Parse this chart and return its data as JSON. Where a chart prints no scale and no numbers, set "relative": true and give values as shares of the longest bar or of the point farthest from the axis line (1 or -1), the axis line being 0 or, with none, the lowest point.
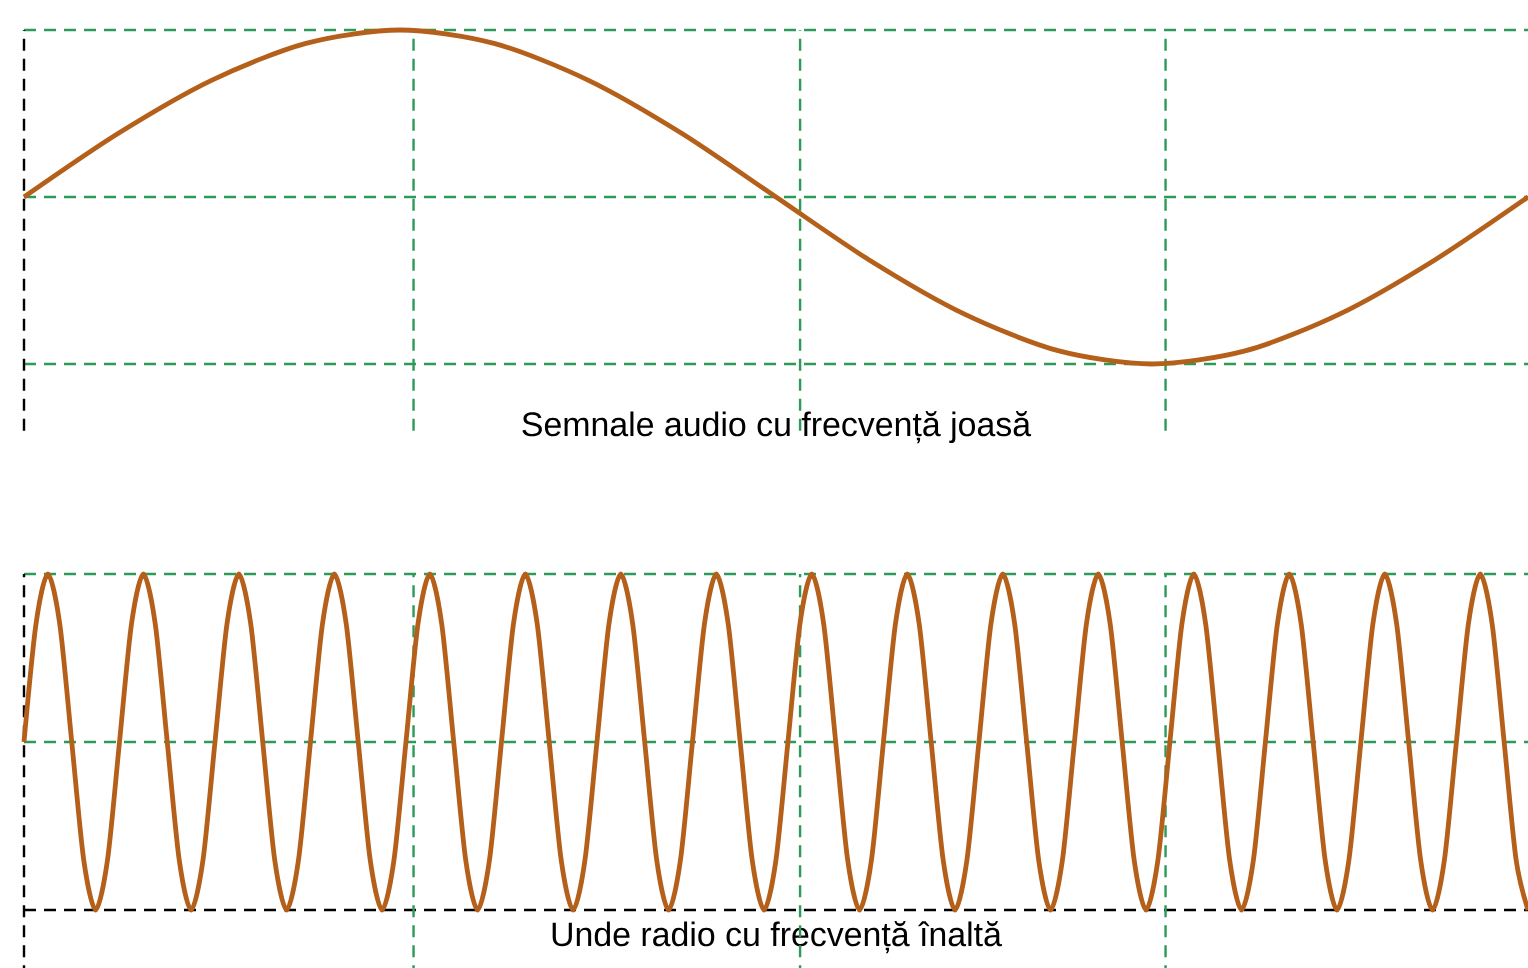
{
  "chart_data": [
    {
      "type": "line",
      "relative": true,
      "grid": true,
      "xlabel": "Semnale audio cu frecvență joasă",
      "ref_lines": [
        {
          "axis": "y",
          "value": 0.5,
          "color": "#2e9a5a",
          "line_style": "dashed"
        }
      ],
      "categories": [
        null,
        null,
        null,
        null,
        null,
        null,
        null,
        null,
        null,
        null,
        null,
        null,
        null,
        null,
        null,
        null,
        null
      ],
      "series": [
        {
          "color": "#b5601a",
          "values": [
            0.5,
            0.69,
            0.85,
            0.96,
            1,
            0.96,
            0.85,
            0.69,
            0.5,
            0.31,
            0.15,
            0.04,
            0,
            0.04,
            0.15,
            0.31,
            0.5
          ]
        }
      ]
    },
    {
      "type": "line",
      "relative": true,
      "grid": true,
      "xlabel": "Unde radio cu frecvență înaltă",
      "ref_lines": [
        {
          "axis": "y",
          "value": 0.5,
          "color": "#2e9a5a",
          "line_style": "dashed"
        }
      ],
      "categories": [
        null,
        null,
        null,
        null,
        null,
        null,
        null,
        null,
        null,
        null,
        null,
        null,
        null,
        null,
        null,
        null,
        null,
        null,
        null,
        null,
        null,
        null,
        null,
        null,
        null,
        null,
        null,
        null,
        null,
        null,
        null,
        null,
        null,
        null,
        null,
        null,
        null,
        null,
        null,
        null,
        null,
        null,
        null,
        null,
        null,
        null,
        null,
        null,
        null,
        null,
        null,
        null,
        null,
        null,
        null,
        null,
        null,
        null,
        null,
        null,
        null,
        null,
        null,
        null,
        null,
        null,
        null,
        null,
        null,
        null,
        null,
        null,
        null,
        null,
        null,
        null,
        null,
        null,
        null,
        null,
        null,
        null,
        null,
        null,
        null,
        null,
        null,
        null,
        null,
        null,
        null,
        null,
        null,
        null,
        null,
        null,
        null,
        null,
        null,
        null,
        null,
        null,
        null,
        null,
        null,
        null,
        null,
        null,
        null,
        null,
        null,
        null,
        null,
        null,
        null,
        null,
        null,
        null,
        null,
        null,
        null,
        null,
        null,
        null,
        null,
        null,
        null
      ],
      "series": [
        {
          "color": "#b5601a",
          "values": [
            0.5,
            0.85,
            1,
            0.85,
            0.5,
            0.15,
            0,
            0.15,
            0.5,
            0.85,
            1,
            0.85,
            0.5,
            0.15,
            0,
            0.15,
            0.5,
            0.85,
            1,
            0.85,
            0.5,
            0.15,
            0,
            0.15,
            0.5,
            0.85,
            1,
            0.85,
            0.5,
            0.15,
            0,
            0.15,
            0.5,
            0.85,
            1,
            0.85,
            0.5,
            0.15,
            0,
            0.15,
            0.5,
            0.85,
            1,
            0.85,
            0.5,
            0.15,
            0,
            0.15,
            0.5,
            0.85,
            1,
            0.85,
            0.5,
            0.15,
            0,
            0.15,
            0.5,
            0.85,
            1,
            0.85,
            0.5,
            0.15,
            0,
            0.15,
            0.5,
            0.85,
            1,
            0.85,
            0.5,
            0.15,
            0,
            0.15,
            0.5,
            0.85,
            1,
            0.85,
            0.5,
            0.15,
            0,
            0.15,
            0.5,
            0.85,
            1,
            0.85,
            0.5,
            0.15,
            0,
            0.15,
            0.5,
            0.85,
            1,
            0.85,
            0.5,
            0.15,
            0,
            0.15,
            0.5,
            0.85,
            1,
            0.85,
            0.5,
            0.15,
            0,
            0.15,
            0.5,
            0.85,
            1,
            0.85,
            0.5,
            0.15,
            0,
            0.15,
            0.5,
            0.85,
            1,
            0.85,
            0.5,
            0.15,
            0,
            0.15,
            0.5,
            0.85,
            1,
            0.85,
            0.5,
            0.15,
            0
          ]
        }
      ]
    }
  ]
}
